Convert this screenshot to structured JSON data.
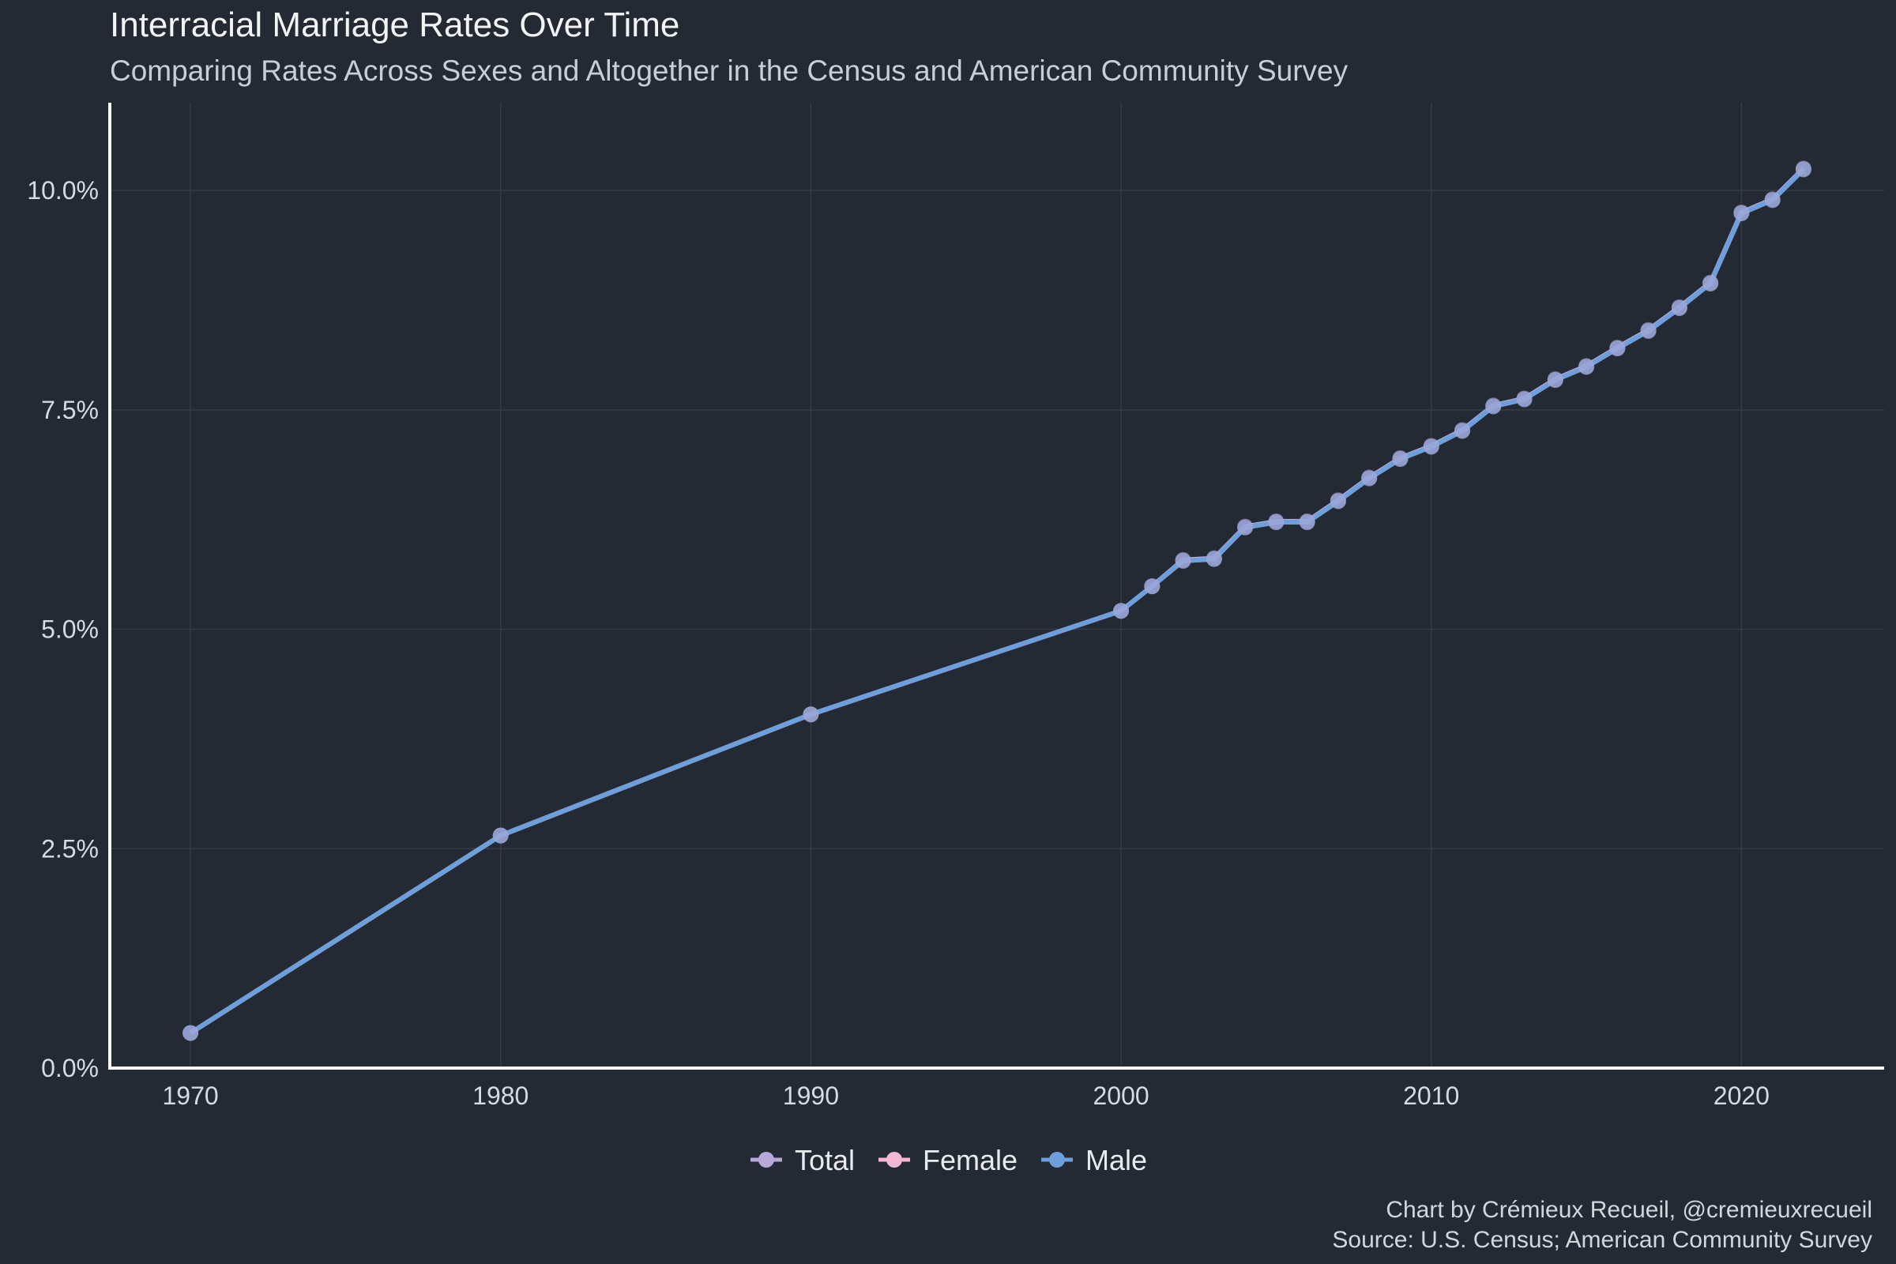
{
  "chart_data": {
    "type": "line",
    "title": "Interracial Marriage Rates Over Time",
    "subtitle": "Comparing Rates Across Sexes and Altogether in the Census and American Community Survey",
    "xlabel": "",
    "ylabel": "",
    "xlim": [
      1967.4,
      2024.6
    ],
    "ylim": [
      0,
      0.11
    ],
    "x_ticks": [
      1970,
      1980,
      1990,
      2000,
      2010,
      2020
    ],
    "y_ticks": [
      0,
      0.025,
      0.05,
      0.075,
      0.1
    ],
    "y_tick_labels": [
      "0.0%",
      "2.5%",
      "5.0%",
      "7.5%",
      "10.0%"
    ],
    "grid": true,
    "legend_position": "bottom",
    "x": [
      1970,
      1980,
      1990,
      2000,
      2001,
      2002,
      2003,
      2004,
      2005,
      2006,
      2007,
      2008,
      2009,
      2010,
      2011,
      2012,
      2013,
      2014,
      2015,
      2016,
      2017,
      2018,
      2019,
      2020,
      2021,
      2022
    ],
    "series": [
      {
        "name": "Total",
        "color": "#b8a8d9",
        "values": [
          0.004,
          0.0265,
          0.0403,
          0.0521,
          0.0549,
          0.0579,
          0.0581,
          0.0617,
          0.0623,
          0.0623,
          0.0647,
          0.0673,
          0.0695,
          0.0709,
          0.0727,
          0.0755,
          0.0763,
          0.0785,
          0.08,
          0.0821,
          0.0841,
          0.0867,
          0.0895,
          0.0975,
          0.099,
          0.1025
        ]
      },
      {
        "name": "Female",
        "color": "#f4b8d4",
        "values": [
          0.004,
          0.0265,
          0.0403,
          0.0521,
          0.0549,
          0.0578,
          0.058,
          0.0616,
          0.0622,
          0.0622,
          0.0646,
          0.0672,
          0.0694,
          0.0708,
          0.0726,
          0.0754,
          0.0762,
          0.0784,
          0.0799,
          0.082,
          0.084,
          0.0866,
          0.0894,
          0.0974,
          0.0989,
          0.1024
        ]
      },
      {
        "name": "Male",
        "color": "#6d9fdc",
        "values": [
          0.004,
          0.0265,
          0.0403,
          0.0521,
          0.0549,
          0.0578,
          0.058,
          0.0616,
          0.0622,
          0.0622,
          0.0646,
          0.0672,
          0.0694,
          0.0708,
          0.0726,
          0.0754,
          0.0762,
          0.0784,
          0.0799,
          0.082,
          0.084,
          0.0866,
          0.0894,
          0.0974,
          0.0989,
          0.1024
        ]
      }
    ],
    "caption_line1": "Chart by Crémieux Recueil, @cremieuxrecueil",
    "caption_line2": "Source: U.S. Census; American Community Survey"
  }
}
